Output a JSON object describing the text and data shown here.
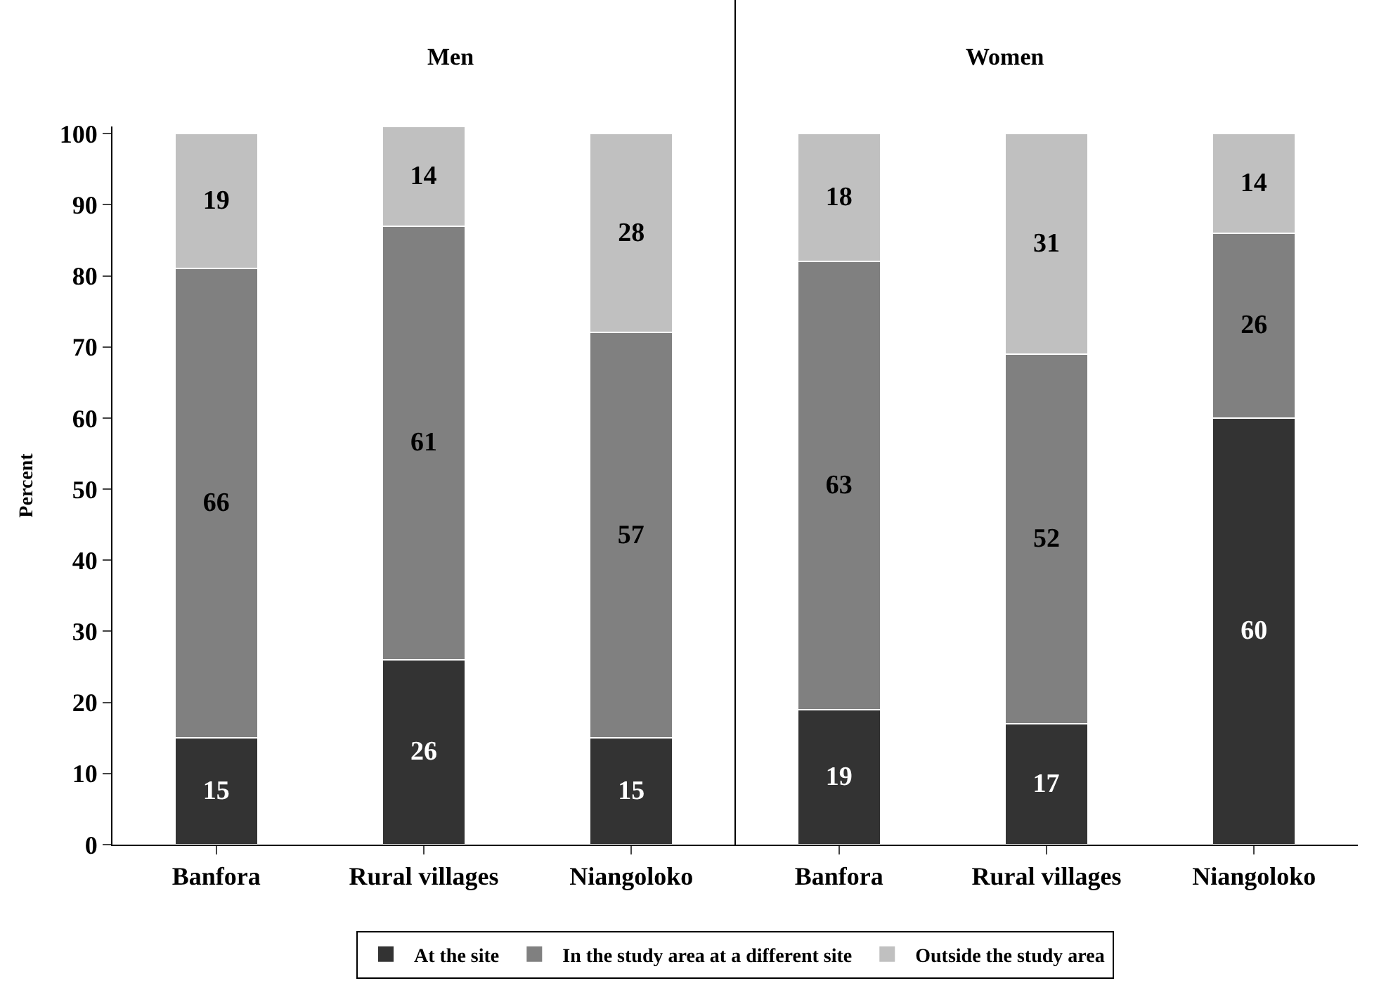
{
  "chart_data": {
    "type": "bar",
    "stacked": true,
    "ylabel": "Percent",
    "categories": [
      "Banfora",
      "Rural villages",
      "Niangoloko",
      "Banfora",
      "Rural villages",
      "Niangoloko"
    ],
    "series": [
      {
        "name": "At the site",
        "color": "#333333",
        "values": [
          15,
          26,
          15,
          19,
          17,
          60
        ]
      },
      {
        "name": "In the study area at a different site",
        "color": "#808080",
        "values": [
          66,
          61,
          57,
          63,
          52,
          26
        ]
      },
      {
        "name": "Outside the study area",
        "color": "#c0c0c0",
        "values": [
          19,
          14,
          28,
          18,
          31,
          14
        ]
      }
    ],
    "ylim": [
      0,
      101
    ],
    "yticks": [
      0,
      10,
      20,
      30,
      40,
      50,
      60,
      70,
      80,
      90,
      100
    ],
    "annotations": [
      "Men",
      "Women"
    ],
    "data_labels": true,
    "legend": "bottom"
  }
}
